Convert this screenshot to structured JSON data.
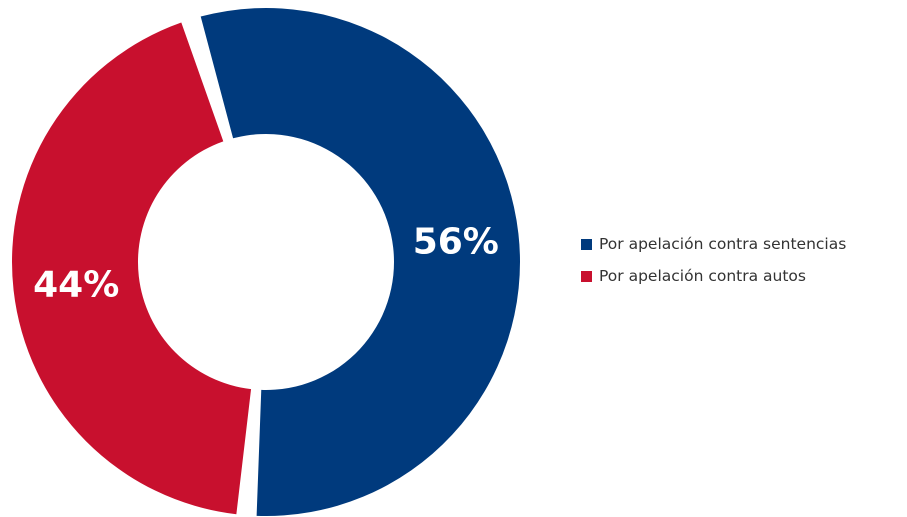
{
  "chart_data": {
    "type": "pie",
    "variant": "donut",
    "slices": [
      {
        "name": "Por apelación contra sentencias",
        "value": 56,
        "label": "56%",
        "color": "#003A7D"
      },
      {
        "name": "Por apelación contra autos",
        "value": 44,
        "label": "44%",
        "color": "#C8102E"
      }
    ],
    "legend_position": "right"
  }
}
